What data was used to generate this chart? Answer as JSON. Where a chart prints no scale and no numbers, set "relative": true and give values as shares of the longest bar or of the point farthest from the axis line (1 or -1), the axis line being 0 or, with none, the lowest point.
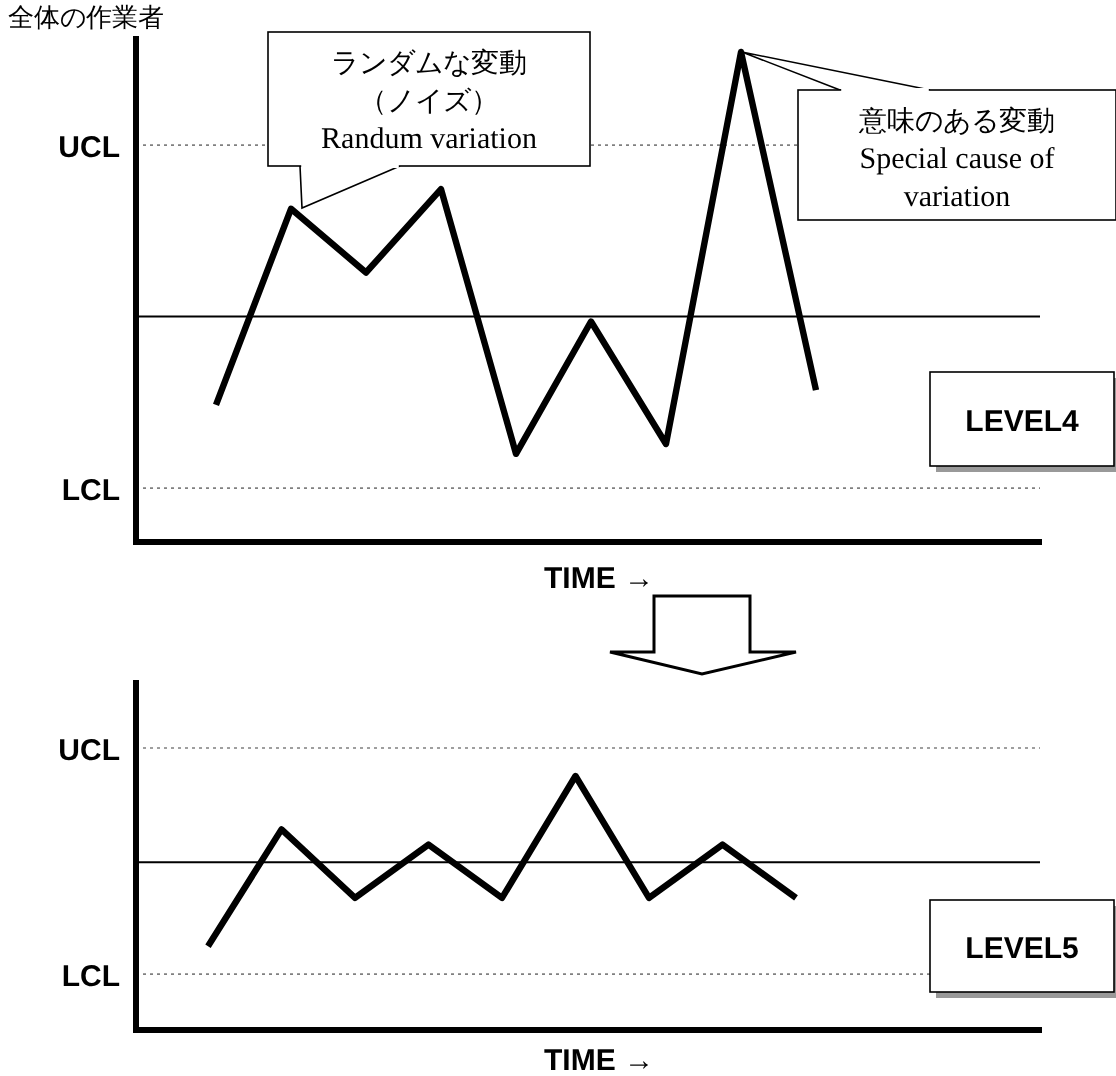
{
  "chart_data": [
    {
      "type": "line",
      "title": "全体の作業者",
      "xlabel": "TIME →",
      "relative": true,
      "categories": [
        null,
        null,
        null,
        null,
        null,
        null,
        null,
        null,
        null
      ],
      "series": [
        {
          "color": "#000000",
          "values": [
            0.28,
            0.68,
            0.55,
            0.72,
            0.18,
            0.45,
            0.2,
            1,
            0.31
          ]
        }
      ],
      "ref_lines": [
        {
          "axis": "y",
          "value": 0.81,
          "label": "UCL",
          "line_style": "dotted",
          "color": "#808080"
        },
        {
          "axis": "y",
          "value": 0.46,
          "line_style": "solid",
          "color": "#000000"
        },
        {
          "axis": "y",
          "value": 0.11,
          "label": "LCL",
          "line_style": "dotted",
          "color": "#808080"
        }
      ],
      "annotations": [
        "ランダムな変動（ノイズ）",
        "Randum variation",
        "意味のある変動",
        "Special cause of variation",
        "LEVEL4"
      ],
      "marker": "none",
      "line_style": "solid"
    },
    {
      "type": "line",
      "xlabel": "TIME →",
      "relative": true,
      "categories": [
        null,
        null,
        null,
        null,
        null,
        null,
        null,
        null,
        null
      ],
      "series": [
        {
          "color": "#000000",
          "values": [
            0.33,
            0.79,
            0.52,
            0.73,
            0.52,
            1,
            0.52,
            0.73,
            0.52
          ]
        }
      ],
      "ref_lines": [
        {
          "axis": "y",
          "value": 1.11,
          "label": "UCL",
          "line_style": "dotted",
          "color": "#808080"
        },
        {
          "axis": "y",
          "value": 0.66,
          "line_style": "solid",
          "color": "#000000"
        },
        {
          "axis": "y",
          "value": 0.22,
          "label": "LCL",
          "line_style": "dotted",
          "color": "#808080"
        }
      ],
      "annotations": [
        "LEVEL5"
      ],
      "marker": "none",
      "line_style": "solid"
    }
  ]
}
